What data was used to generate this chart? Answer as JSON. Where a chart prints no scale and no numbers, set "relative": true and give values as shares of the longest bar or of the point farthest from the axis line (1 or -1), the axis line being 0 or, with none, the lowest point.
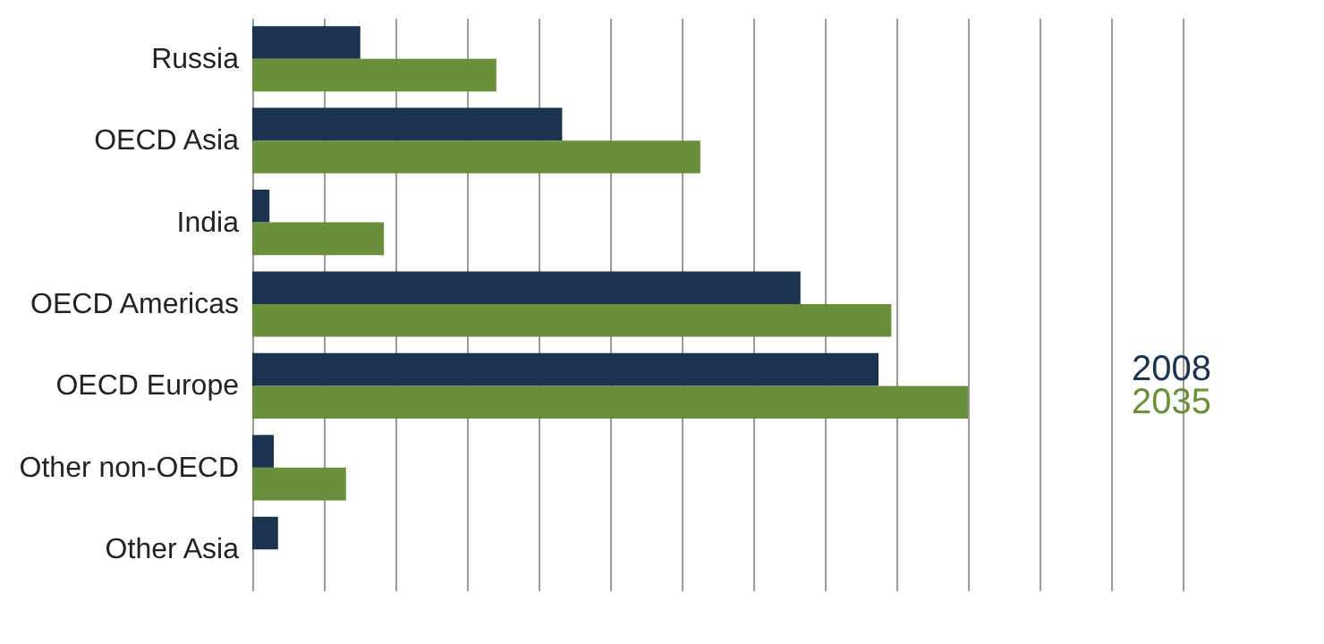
{
  "chart_data": {
    "type": "bar",
    "orientation": "horizontal",
    "relative": true,
    "grid": "x",
    "categories": [
      "Russia",
      "OECD Asia",
      "India",
      "OECD Americas",
      "OECD Europe",
      "Other non-OECD",
      "Other Asia"
    ],
    "series": [
      {
        "name": "2008",
        "color": "#1c3350",
        "values": [
          0.151,
          0.433,
          0.024,
          0.766,
          0.875,
          0.03,
          0.036
        ]
      },
      {
        "name": "2035",
        "color": "#6a8f3a",
        "values": [
          0.341,
          0.626,
          0.184,
          0.893,
          1,
          0.131,
          null
        ]
      }
    ]
  }
}
